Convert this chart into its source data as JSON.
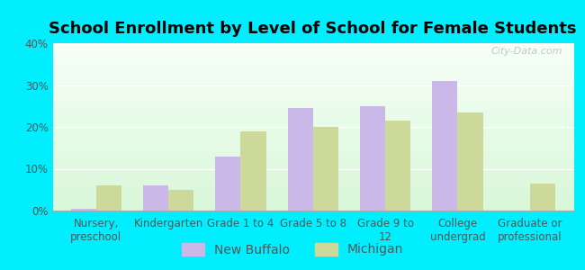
{
  "title": "School Enrollment by Level of School for Female Students",
  "categories": [
    "Nursery,\npreschool",
    "Kindergarten",
    "Grade 1 to 4",
    "Grade 5 to 8",
    "Grade 9 to\n12",
    "College\nundergrad",
    "Graduate or\nprofessional"
  ],
  "new_buffalo": [
    0.5,
    6.0,
    13.0,
    24.5,
    25.0,
    31.0,
    0.0
  ],
  "michigan": [
    6.0,
    5.0,
    19.0,
    20.0,
    21.5,
    23.5,
    6.5
  ],
  "new_buffalo_color": "#c9b8e8",
  "michigan_color": "#cdd99a",
  "ylim": [
    0,
    40
  ],
  "yticks": [
    0,
    10,
    20,
    30,
    40
  ],
  "ytick_labels": [
    "0%",
    "10%",
    "20%",
    "30%",
    "40%"
  ],
  "outer_background": "#00eeff",
  "bar_width": 0.35,
  "title_fontsize": 13,
  "tick_fontsize": 8.5,
  "legend_fontsize": 10,
  "watermark": "City-Data.com"
}
